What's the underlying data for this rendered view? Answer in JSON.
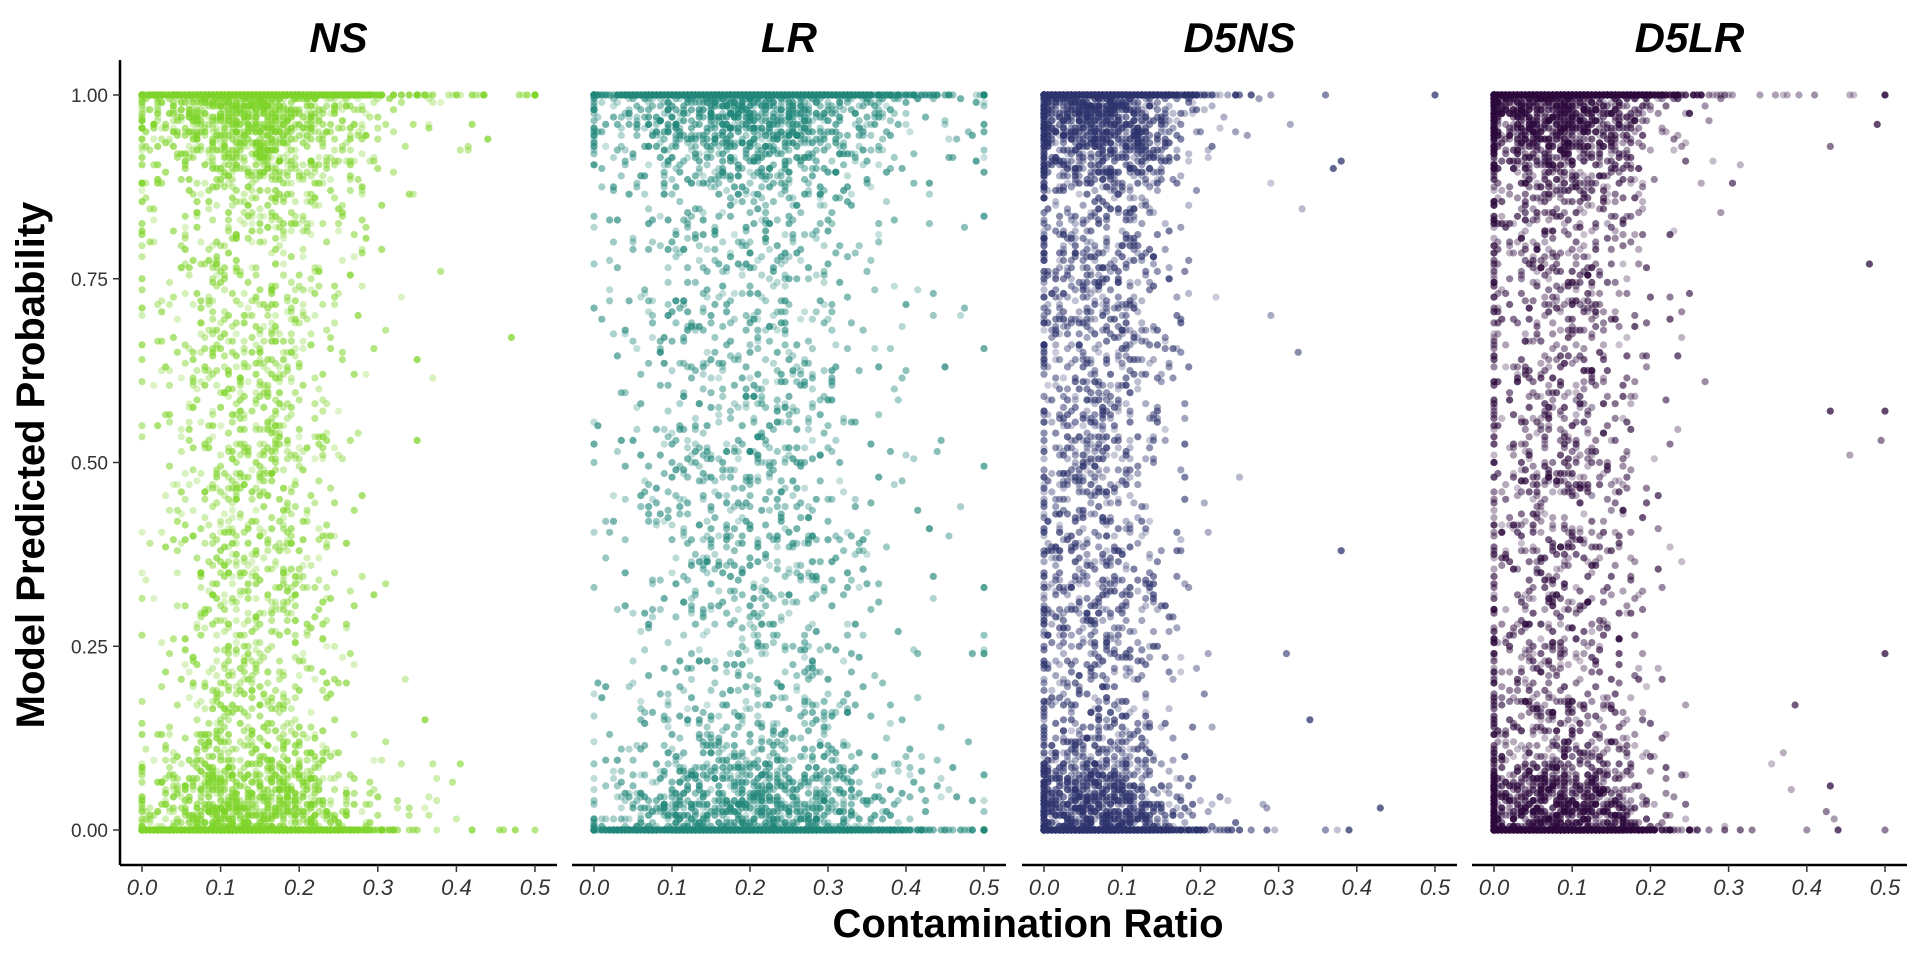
{
  "chart_data": {
    "type": "scatter",
    "title": "",
    "xlabel": "Contamination Ratio",
    "ylabel": "Model Predicted Probability",
    "xlim": [
      0.0,
      0.5
    ],
    "ylim": [
      0.0,
      1.0
    ],
    "x_ticks": [
      "0.0",
      "0.1",
      "0.2",
      "0.3",
      "0.4",
      "0.5"
    ],
    "y_ticks": [
      "0.00",
      "0.25",
      "0.50",
      "0.75",
      "1.00"
    ],
    "grid": false,
    "legend": "none",
    "facets": [
      {
        "name": "NS",
        "color": "#7fd42a",
        "x_peak": 0.14,
        "x_spread_top": 0.075,
        "x_spread_mid": 0.055,
        "x_spread_bottom": 0.07,
        "x_max": 0.5,
        "points": [
          {
            "x": 0.42,
            "y": 0.0
          },
          {
            "x": 0.36,
            "y": 0.15
          },
          {
            "x": 0.47,
            "y": 0.67
          },
          {
            "x": 0.44,
            "y": 0.94
          },
          {
            "x": 0.5,
            "y": 1.0
          },
          {
            "x": 0.35,
            "y": 0.64
          },
          {
            "x": 0.35,
            "y": 0.53
          }
        ]
      },
      {
        "name": "LR",
        "color": "#21877a",
        "x_peak": 0.2,
        "x_spread_top": 0.1,
        "x_spread_mid": 0.085,
        "x_spread_bottom": 0.1,
        "x_max": 0.5,
        "points": [
          {
            "x": 0.5,
            "y": 0.33
          },
          {
            "x": 0.5,
            "y": 0.24
          },
          {
            "x": 0.49,
            "y": 0.91
          },
          {
            "x": 0.5,
            "y": 1.0
          },
          {
            "x": 0.45,
            "y": 0.63
          },
          {
            "x": 0.43,
            "y": 0.41
          }
        ]
      },
      {
        "name": "D5NS",
        "color": "#2e346d",
        "x_peak": 0.065,
        "x_spread_top": 0.06,
        "x_spread_mid": 0.045,
        "x_spread_bottom": 0.055,
        "x_max": 0.5,
        "points": [
          {
            "x": 0.39,
            "y": 0.0
          },
          {
            "x": 0.43,
            "y": 0.03
          },
          {
            "x": 0.38,
            "y": 0.38
          },
          {
            "x": 0.37,
            "y": 0.9
          },
          {
            "x": 0.38,
            "y": 0.91
          },
          {
            "x": 0.5,
            "y": 1.0
          },
          {
            "x": 0.34,
            "y": 0.15
          }
        ]
      },
      {
        "name": "D5LR",
        "color": "#2d0a3d",
        "x_peak": 0.075,
        "x_spread_top": 0.07,
        "x_spread_mid": 0.055,
        "x_spread_bottom": 0.065,
        "x_max": 0.5,
        "points": [
          {
            "x": 0.5,
            "y": 0.57
          },
          {
            "x": 0.5,
            "y": 0.24
          },
          {
            "x": 0.48,
            "y": 0.77
          },
          {
            "x": 0.49,
            "y": 0.96
          },
          {
            "x": 0.5,
            "y": 1.0
          },
          {
            "x": 0.43,
            "y": 0.57
          },
          {
            "x": 0.43,
            "y": 0.06
          },
          {
            "x": 0.44,
            "y": 0.0
          }
        ]
      }
    ]
  }
}
